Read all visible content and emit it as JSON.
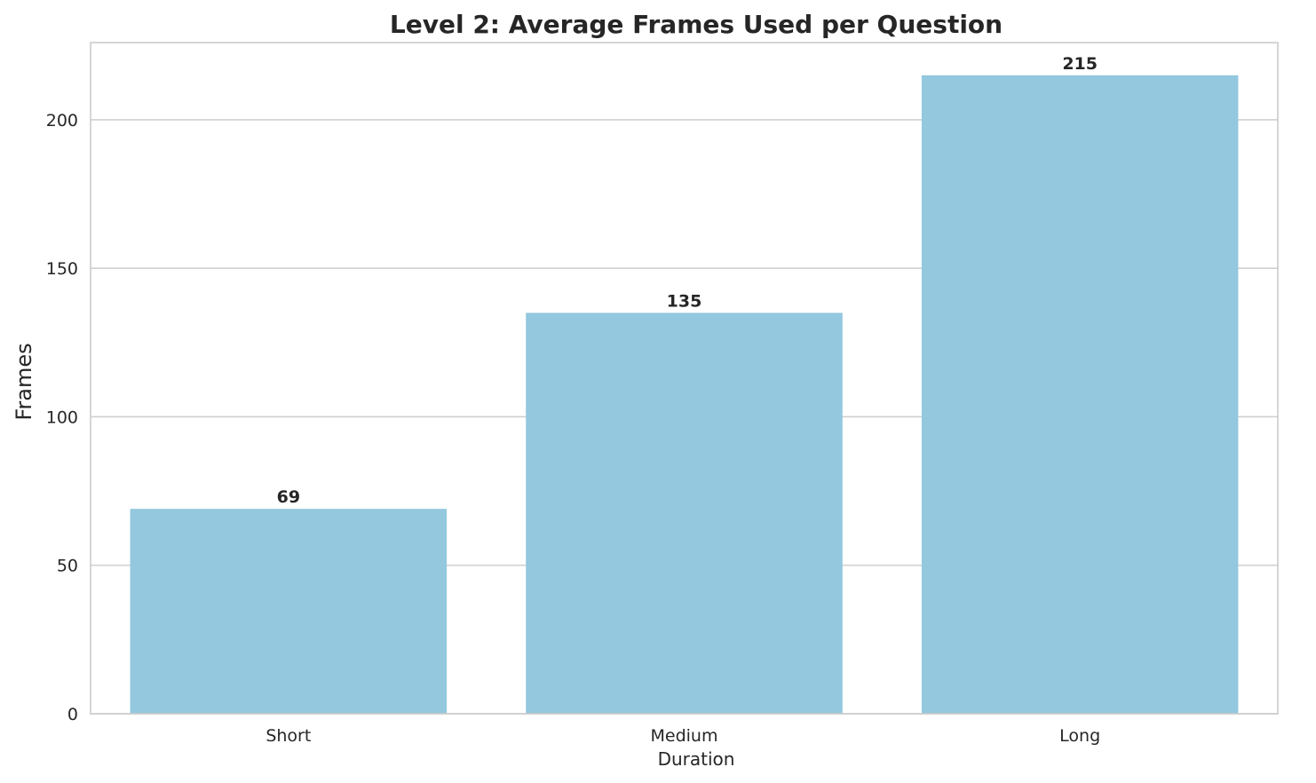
{
  "chart_data": {
    "type": "bar",
    "title": "Level 2: Average Frames Used per Question",
    "xlabel": "Duration",
    "ylabel": "Frames",
    "categories": [
      "Short",
      "Medium",
      "Long"
    ],
    "values": [
      69,
      135,
      215
    ],
    "data_labels": [
      "69",
      "135",
      "215"
    ],
    "ylim": [
      0,
      226
    ],
    "yticks": [
      0,
      50,
      100,
      150,
      200
    ],
    "ytick_labels": [
      "0",
      "50",
      "100",
      "150",
      "200"
    ],
    "grid": "y-axis horizontal lines",
    "legend": "none",
    "colors": {
      "bar": "#93c8de",
      "grid": "#d0d0d0",
      "spine": "#cccccc",
      "text": "#262626"
    }
  }
}
